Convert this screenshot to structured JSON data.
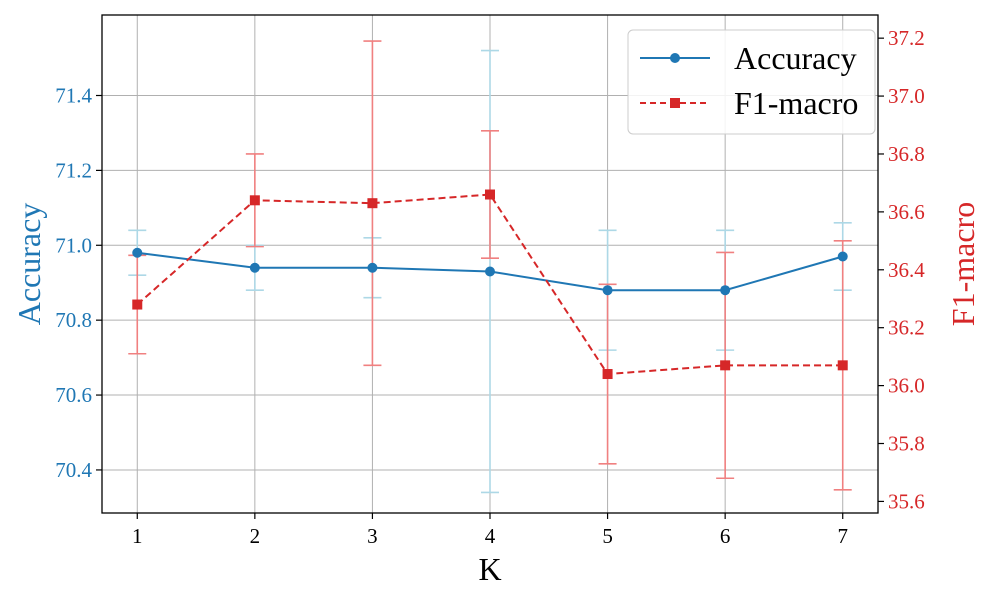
{
  "chart_data": {
    "type": "line",
    "xlabel": "K",
    "x": [
      1,
      2,
      3,
      4,
      5,
      6,
      7
    ],
    "xlim": [
      0.7,
      7.3
    ],
    "grid": true,
    "legend_position": "top-right",
    "series": [
      {
        "name": "Accuracy",
        "axis": "left",
        "color": "#1f77b4",
        "errorbar_color": "#add8e6",
        "marker": "circle",
        "linestyle": "solid",
        "values": [
          70.98,
          70.94,
          70.94,
          70.93,
          70.88,
          70.88,
          70.97
        ],
        "errors": [
          0.06,
          0.06,
          0.08,
          0.59,
          0.16,
          0.16,
          0.09
        ]
      },
      {
        "name": "F1-macro",
        "axis": "right",
        "color": "#d62728",
        "errorbar_color": "#f08080",
        "marker": "square",
        "linestyle": "dashed",
        "values": [
          36.28,
          36.64,
          36.63,
          36.66,
          36.04,
          36.07,
          36.07
        ],
        "errors": [
          0.17,
          0.16,
          0.56,
          0.22,
          0.31,
          0.39,
          0.43
        ]
      }
    ],
    "y_left": {
      "label": "Accuracy",
      "color": "#1f77b4",
      "lim": [
        70.285,
        71.615
      ],
      "ticks": [
        "70.4",
        "70.6",
        "70.8",
        "71.0",
        "71.2",
        "71.4"
      ]
    },
    "y_right": {
      "label": "F1-macro",
      "color": "#d62728",
      "lim": [
        35.56,
        37.28
      ],
      "ticks": [
        "35.6",
        "35.8",
        "36.0",
        "36.2",
        "36.4",
        "36.6",
        "36.8",
        "37.0",
        "37.2"
      ]
    },
    "x_ticks": [
      "1",
      "2",
      "3",
      "4",
      "5",
      "6",
      "7"
    ]
  }
}
